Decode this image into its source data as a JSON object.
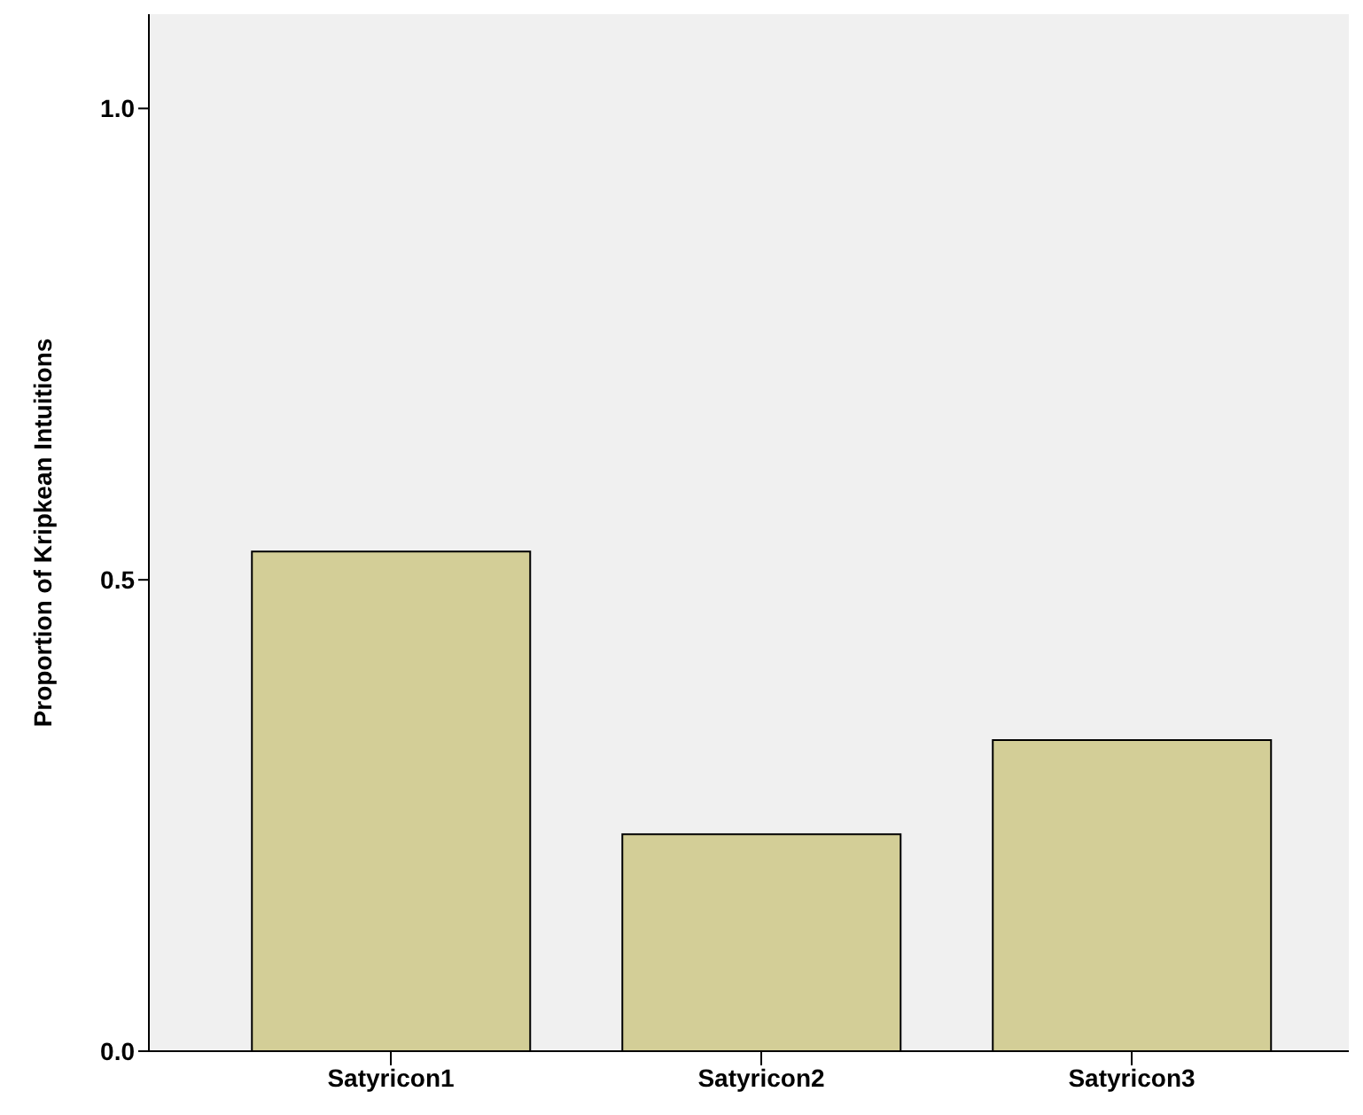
{
  "chart_data": {
    "type": "bar",
    "ylabel": "Proportion of Kripkean Intuitions",
    "categories": [
      "Satyricon1",
      "Satyricon2",
      "Satyricon3"
    ],
    "values": [
      0.53,
      0.23,
      0.33
    ],
    "color": "#d3ce97",
    "ylim": [
      0,
      1.1
    ],
    "yticks": [
      {
        "value": 0,
        "label": "0.0"
      },
      {
        "value": 0.5,
        "label": "0.5"
      },
      {
        "value": 1,
        "label": "1.0"
      }
    ]
  }
}
